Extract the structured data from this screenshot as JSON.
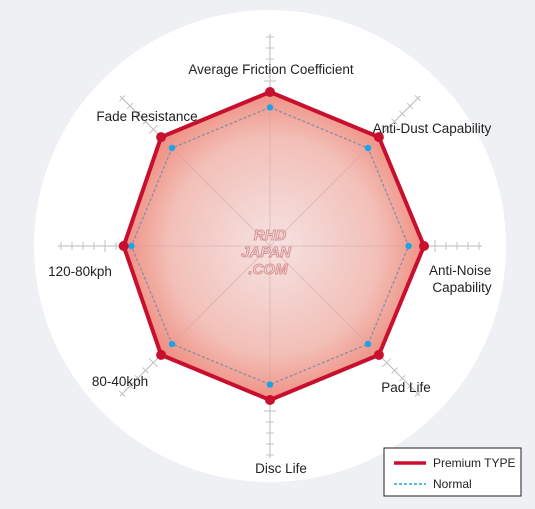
{
  "chart_data": {
    "type": "radar",
    "axes": [
      "Average Friction Coefficient",
      "Anti-Dust Capability",
      "Anti-Noise Capability",
      "Pad Life",
      "Disc Life",
      "80-40kph",
      "120-80kph",
      "Fade Resistance"
    ],
    "range": [
      0,
      10
    ],
    "grid": true,
    "series": [
      {
        "name": "Premium TYPE",
        "values": [
          10,
          10,
          10,
          10,
          10,
          10,
          9.5,
          10
        ],
        "color": "#c8102e"
      },
      {
        "name": "Normal",
        "values": [
          9,
          9,
          9,
          9,
          9,
          9,
          9,
          9
        ],
        "color": "#1aa3e8"
      }
    ],
    "legend_position": "bottom-right"
  },
  "watermark": [
    "RHD",
    "JAPAN",
    ".COM"
  ]
}
